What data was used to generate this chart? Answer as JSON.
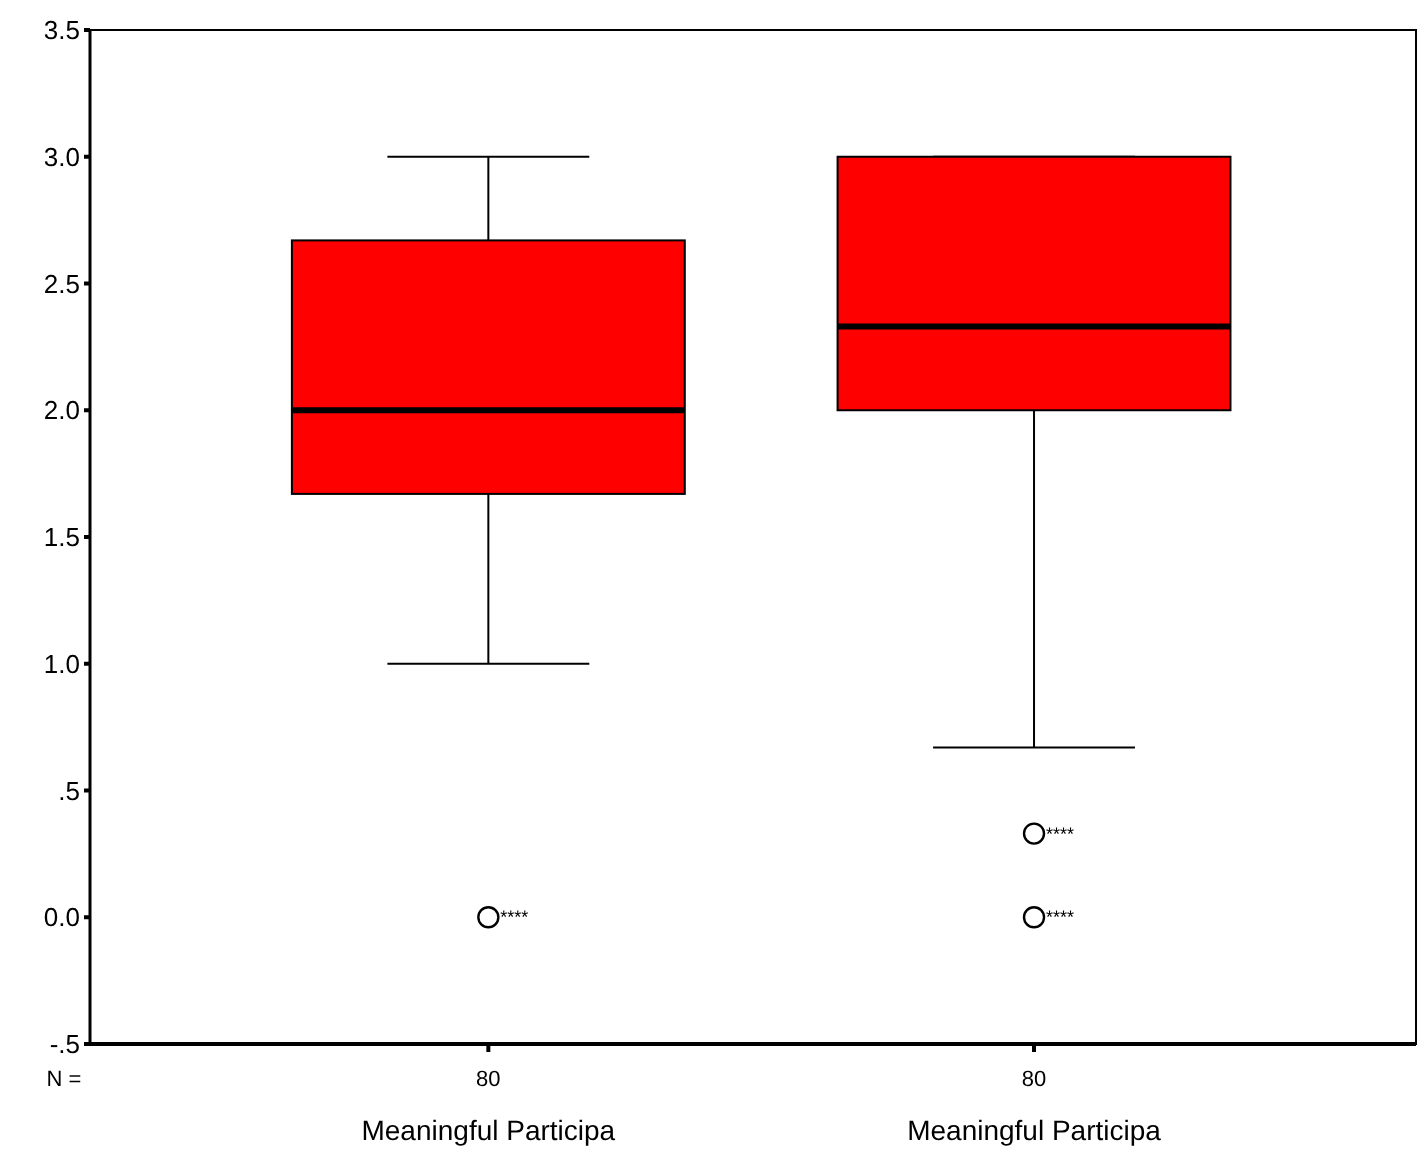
{
  "chart_data": {
    "type": "box",
    "categories": [
      "Meaningful Participa",
      "Meaningful Participa"
    ],
    "boxes": [
      {
        "low": 1.0,
        "q1": 1.67,
        "median": 2.0,
        "q3": 2.67,
        "high": 3.0,
        "outliers": [
          0
        ]
      },
      {
        "low": 0.67,
        "q1": 2.0,
        "median": 2.33,
        "q3": 3.0,
        "high": 3.0,
        "outliers": [
          0.33,
          0
        ]
      }
    ],
    "color": "#ff0000",
    "ylim": [
      -0.5,
      3.5
    ],
    "yticks": [
      {
        "value": -0.5,
        "label": "-.5"
      },
      {
        "value": 0,
        "label": "0.0"
      },
      {
        "value": 0.5,
        "label": ".5"
      },
      {
        "value": 1,
        "label": "1.0"
      },
      {
        "value": 1.5,
        "label": "1.5"
      },
      {
        "value": 2,
        "label": "2.0"
      },
      {
        "value": 2.5,
        "label": "2.5"
      },
      {
        "value": 3,
        "label": "3.0"
      },
      {
        "value": 3.5,
        "label": "3.5"
      }
    ],
    "annotations": [
      "N =",
      "80",
      "80",
      "****",
      "****",
      "****"
    ],
    "tick_labels": true
  }
}
